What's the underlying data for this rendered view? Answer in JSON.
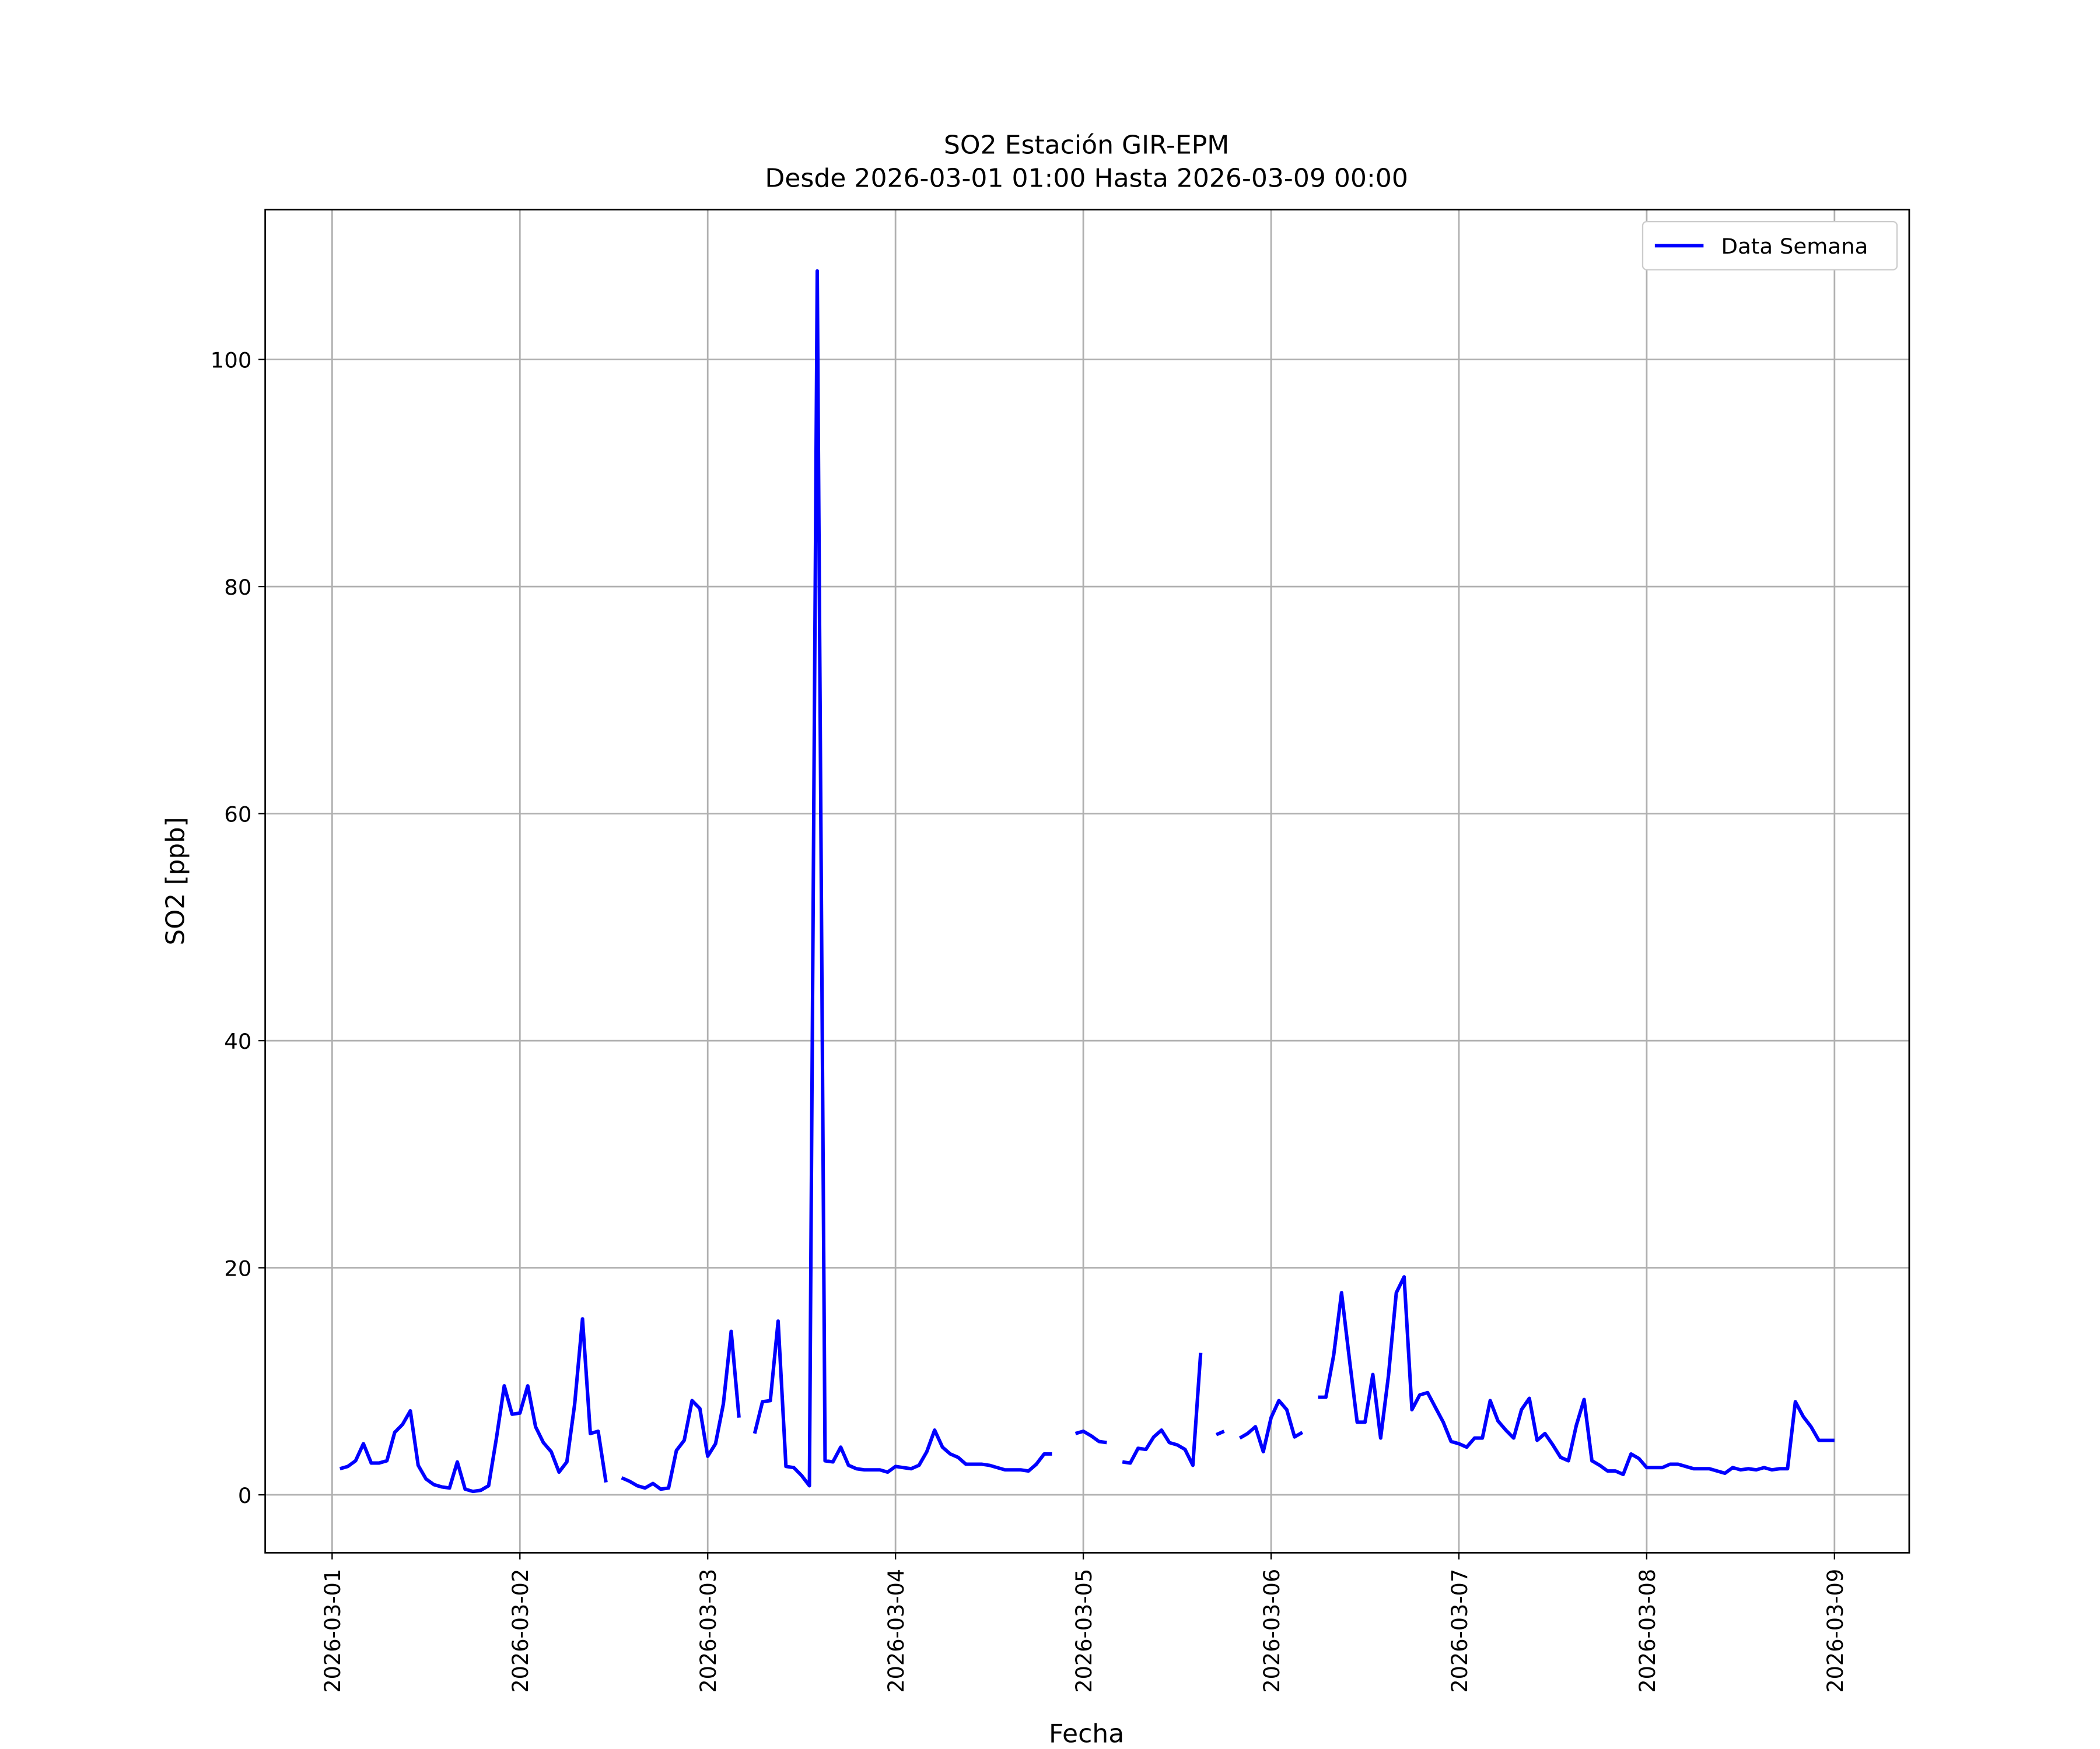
{
  "chart_data": {
    "type": "line",
    "title": "SO2 Estación GIR-EPM",
    "subtitle": "Desde 2026-03-01 01:00 Hasta 2026-03-09 00:00",
    "x_label": "Fecha",
    "y_label": "SO2 [ppb]",
    "x": [
      "2026-03-01 01:00",
      "2026-03-01 02:00",
      "2026-03-01 03:00",
      "2026-03-01 04:00",
      "2026-03-01 05:00",
      "2026-03-01 06:00",
      "2026-03-01 07:00",
      "2026-03-01 08:00",
      "2026-03-01 09:00",
      "2026-03-01 10:00",
      "2026-03-01 11:00",
      "2026-03-01 12:00",
      "2026-03-01 13:00",
      "2026-03-01 14:00",
      "2026-03-01 15:00",
      "2026-03-01 16:00",
      "2026-03-01 17:00",
      "2026-03-01 18:00",
      "2026-03-01 19:00",
      "2026-03-01 20:00",
      "2026-03-01 21:00",
      "2026-03-01 22:00",
      "2026-03-01 23:00",
      "2026-03-02 00:00",
      "2026-03-02 01:00",
      "2026-03-02 02:00",
      "2026-03-02 03:00",
      "2026-03-02 04:00",
      "2026-03-02 05:00",
      "2026-03-02 06:00",
      "2026-03-02 07:00",
      "2026-03-02 08:00",
      "2026-03-02 09:00",
      "2026-03-02 10:00",
      "2026-03-02 11:00",
      "2026-03-02 12:00",
      "2026-03-02 13:00",
      "2026-03-02 14:00",
      "2026-03-02 15:00",
      "2026-03-02 16:00",
      "2026-03-02 17:00",
      "2026-03-02 18:00",
      "2026-03-02 19:00",
      "2026-03-02 20:00",
      "2026-03-02 21:00",
      "2026-03-02 22:00",
      "2026-03-02 23:00",
      "2026-03-03 00:00",
      "2026-03-03 01:00",
      "2026-03-03 02:00",
      "2026-03-03 03:00",
      "2026-03-03 04:00",
      "2026-03-03 05:00",
      "2026-03-03 06:00",
      "2026-03-03 07:00",
      "2026-03-03 08:00",
      "2026-03-03 09:00",
      "2026-03-03 10:00",
      "2026-03-03 11:00",
      "2026-03-03 12:00",
      "2026-03-03 13:00",
      "2026-03-03 14:00",
      "2026-03-03 15:00",
      "2026-03-03 16:00",
      "2026-03-03 17:00",
      "2026-03-03 18:00",
      "2026-03-03 19:00",
      "2026-03-03 20:00",
      "2026-03-03 21:00",
      "2026-03-03 22:00",
      "2026-03-03 23:00",
      "2026-03-04 00:00",
      "2026-03-04 01:00",
      "2026-03-04 02:00",
      "2026-03-04 03:00",
      "2026-03-04 04:00",
      "2026-03-04 05:00",
      "2026-03-04 06:00",
      "2026-03-04 07:00",
      "2026-03-04 08:00",
      "2026-03-04 09:00",
      "2026-03-04 10:00",
      "2026-03-04 11:00",
      "2026-03-04 12:00",
      "2026-03-04 13:00",
      "2026-03-04 14:00",
      "2026-03-04 15:00",
      "2026-03-04 16:00",
      "2026-03-04 17:00",
      "2026-03-04 18:00",
      "2026-03-04 19:00",
      "2026-03-04 20:00",
      "2026-03-04 21:00",
      "2026-03-04 22:00",
      "2026-03-04 23:00",
      "2026-03-05 00:00",
      "2026-03-05 01:00",
      "2026-03-05 02:00",
      "2026-03-05 03:00",
      "2026-03-05 04:00",
      "2026-03-05 05:00",
      "2026-03-05 06:00",
      "2026-03-05 07:00",
      "2026-03-05 08:00",
      "2026-03-05 09:00",
      "2026-03-05 10:00",
      "2026-03-05 11:00",
      "2026-03-05 12:00",
      "2026-03-05 13:00",
      "2026-03-05 14:00",
      "2026-03-05 15:00",
      "2026-03-05 16:00",
      "2026-03-05 17:00",
      "2026-03-05 18:00",
      "2026-03-05 19:00",
      "2026-03-05 20:00",
      "2026-03-05 21:00",
      "2026-03-05 22:00",
      "2026-03-05 23:00",
      "2026-03-06 00:00",
      "2026-03-06 01:00",
      "2026-03-06 02:00",
      "2026-03-06 03:00",
      "2026-03-06 04:00",
      "2026-03-06 05:00",
      "2026-03-06 06:00",
      "2026-03-06 07:00",
      "2026-03-06 08:00",
      "2026-03-06 09:00",
      "2026-03-06 10:00",
      "2026-03-06 11:00",
      "2026-03-06 12:00",
      "2026-03-06 13:00",
      "2026-03-06 14:00",
      "2026-03-06 15:00",
      "2026-03-06 16:00",
      "2026-03-06 17:00",
      "2026-03-06 18:00",
      "2026-03-06 19:00",
      "2026-03-06 20:00",
      "2026-03-06 21:00",
      "2026-03-06 22:00",
      "2026-03-06 23:00",
      "2026-03-07 00:00",
      "2026-03-07 01:00",
      "2026-03-07 02:00",
      "2026-03-07 03:00",
      "2026-03-07 04:00",
      "2026-03-07 05:00",
      "2026-03-07 06:00",
      "2026-03-07 07:00",
      "2026-03-07 08:00",
      "2026-03-07 09:00",
      "2026-03-07 10:00",
      "2026-03-07 11:00",
      "2026-03-07 12:00",
      "2026-03-07 13:00",
      "2026-03-07 14:00",
      "2026-03-07 15:00",
      "2026-03-07 16:00",
      "2026-03-07 17:00",
      "2026-03-07 18:00",
      "2026-03-07 19:00",
      "2026-03-07 20:00",
      "2026-03-07 21:00",
      "2026-03-07 22:00",
      "2026-03-07 23:00",
      "2026-03-08 00:00",
      "2026-03-08 01:00",
      "2026-03-08 02:00",
      "2026-03-08 03:00",
      "2026-03-08 04:00",
      "2026-03-08 05:00",
      "2026-03-08 06:00",
      "2026-03-08 07:00",
      "2026-03-08 08:00",
      "2026-03-08 09:00",
      "2026-03-08 10:00",
      "2026-03-08 11:00",
      "2026-03-08 12:00",
      "2026-03-08 13:00",
      "2026-03-08 14:00",
      "2026-03-08 15:00",
      "2026-03-08 16:00",
      "2026-03-08 17:00",
      "2026-03-08 18:00",
      "2026-03-08 19:00",
      "2026-03-08 20:00",
      "2026-03-08 21:00",
      "2026-03-08 22:00",
      "2026-03-08 23:00",
      "2026-03-09 00:00"
    ],
    "series": [
      {
        "name": "Data Semana",
        "color": "#0000ff",
        "values": [
          2.3,
          2.5,
          3,
          4.5,
          2.8,
          2.8,
          3,
          5.5,
          6.2,
          7.4,
          2.6,
          1.4,
          0.9,
          0.7,
          0.6,
          2.9,
          0.5,
          0.3,
          0.4,
          0.8,
          5,
          9.6,
          7.1,
          7.2,
          9.6,
          6,
          4.6,
          3.8,
          2,
          2.9,
          8,
          15.5,
          5.4,
          5.6,
          1.1,
          null,
          1.5,
          1.2,
          0.8,
          0.6,
          1,
          0.5,
          0.6,
          3.9,
          4.8,
          8.3,
          7.6,
          3.4,
          4.5,
          8,
          14.4,
          6.8,
          null,
          5.4,
          8.2,
          8.3,
          15.3,
          2.5,
          2.4,
          1.7,
          0.8,
          107.8,
          3,
          2.9,
          4.2,
          2.6,
          2.3,
          2.2,
          2.2,
          2.2,
          2,
          2.5,
          2.4,
          2.3,
          2.6,
          3.8,
          5.7,
          4.2,
          3.6,
          3.3,
          2.7,
          2.7,
          2.7,
          2.6,
          2.4,
          2.2,
          2.2,
          2.2,
          2.1,
          2.7,
          3.6,
          3.6,
          null,
          null,
          5.4,
          5.6,
          5.2,
          4.7,
          4.6,
          null,
          2.9,
          2.8,
          4.1,
          4,
          5.1,
          5.7,
          4.6,
          4.4,
          4,
          2.6,
          12.5,
          null,
          5.3,
          5.6,
          null,
          5,
          5.4,
          6,
          3.8,
          6.8,
          8.3,
          7.5,
          5.1,
          5.5,
          null,
          8.6,
          8.6,
          12.3,
          17.8,
          12,
          6.4,
          6.4,
          10.6,
          5,
          10.5,
          17.8,
          19.2,
          7.5,
          8.8,
          9,
          7.7,
          6.4,
          4.7,
          4.5,
          4.2,
          5,
          5,
          8.3,
          6.5,
          5.7,
          5,
          7.5,
          8.5,
          4.8,
          5.4,
          4.4,
          3.3,
          3,
          6.1,
          8.4,
          3,
          2.6,
          2.1,
          2.1,
          1.8,
          3.6,
          3.2,
          2.4,
          2.4,
          2.4,
          2.7,
          2.7,
          2.5,
          2.3,
          2.3,
          2.3,
          2.1,
          1.9,
          2.4,
          2.2,
          2.3,
          2.2,
          2.4,
          2.2,
          2.3,
          2.3,
          8.2,
          6.9,
          6,
          4.8,
          4.8,
          4.8
        ]
      }
    ],
    "xlim": [
      "2026-02-28 15:27",
      "2026-03-09 09:33"
    ],
    "xticks": [
      "2026-03-01",
      "2026-03-02",
      "2026-03-03",
      "2026-03-04",
      "2026-03-05",
      "2026-03-06",
      "2026-03-07",
      "2026-03-08",
      "2026-03-09"
    ],
    "ylim": [
      -5.1,
      113.2
    ],
    "yticks": [
      0,
      20,
      40,
      60,
      80,
      100
    ],
    "grid": true,
    "legend": "upper right"
  }
}
